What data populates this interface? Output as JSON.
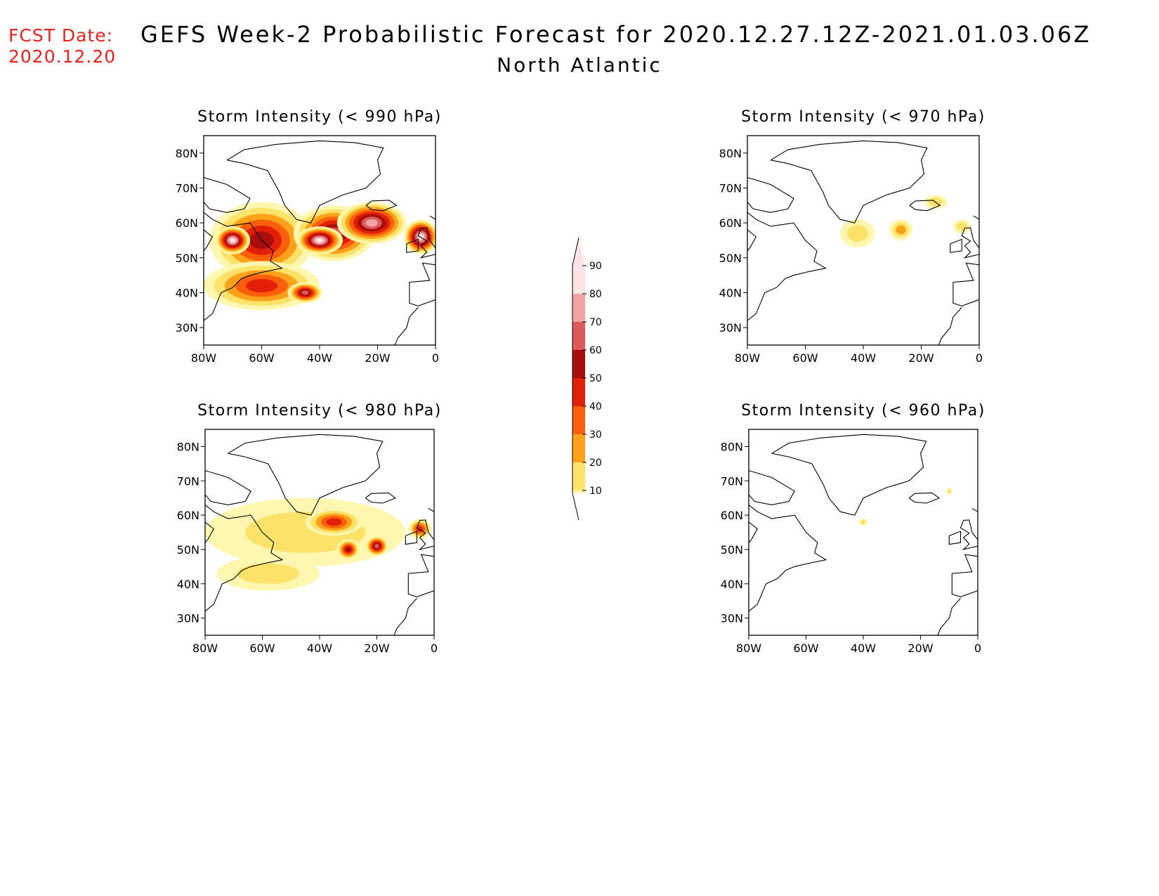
{
  "forecast_date": {
    "label": "FCST Date:",
    "value": "2020.12.20"
  },
  "title": "GEFS Week-2 Probabilistic Forecast for 2020.12.27.12Z-2021.01.03.06Z",
  "subtitle": "North Atlantic",
  "colors": {
    "levels": [
      "#fff7b0",
      "#fde26a",
      "#fda21a",
      "#fb5f0b",
      "#e21f07",
      "#a80e0c",
      "#dc5a5a",
      "#f2a4a4",
      "#fde4e4"
    ]
  },
  "chart_data": {
    "type": "heatmap",
    "colorbar": {
      "ticks": [
        "10",
        "20",
        "30",
        "40",
        "50",
        "60",
        "70",
        "80",
        "90"
      ],
      "range": [
        0,
        100
      ]
    },
    "axes": {
      "lon_range": [
        -80,
        0
      ],
      "lat_range": [
        25,
        85
      ],
      "x_ticks": [
        "80W",
        "60W",
        "40W",
        "20W",
        "0"
      ],
      "y_ticks": [
        "80N",
        "70N",
        "60N",
        "50N",
        "40N",
        "30N"
      ]
    },
    "panels": [
      {
        "title": "Storm Intensity (< 990 hPa)",
        "blobs": [
          {
            "lon": -60,
            "lat": 55,
            "rx": 18,
            "ry": 11,
            "level": 5
          },
          {
            "lon": -35,
            "lat": 57,
            "rx": 14,
            "ry": 8,
            "level": 6
          },
          {
            "lon": -22,
            "lat": 60,
            "rx": 12,
            "ry": 6,
            "level": 7
          },
          {
            "lon": -5,
            "lat": 56,
            "rx": 6,
            "ry": 5,
            "level": 8
          },
          {
            "lon": -40,
            "lat": 55,
            "rx": 8,
            "ry": 4,
            "level": 8
          },
          {
            "lon": -70,
            "lat": 55,
            "rx": 6,
            "ry": 4,
            "level": 8
          },
          {
            "lon": -60,
            "lat": 42,
            "rx": 20,
            "ry": 7,
            "level": 4
          },
          {
            "lon": -45,
            "lat": 40,
            "rx": 6,
            "ry": 3,
            "level": 6
          }
        ]
      },
      {
        "title": "Storm Intensity (< 970 hPa)",
        "blobs": [
          {
            "lon": -42,
            "lat": 57,
            "rx": 6,
            "ry": 4,
            "level": 1
          },
          {
            "lon": -27,
            "lat": 58,
            "rx": 4,
            "ry": 3,
            "level": 2
          },
          {
            "lon": -15,
            "lat": 66,
            "rx": 4,
            "ry": 2,
            "level": 1
          },
          {
            "lon": -6,
            "lat": 59,
            "rx": 3,
            "ry": 2,
            "level": 1
          }
        ]
      },
      {
        "title": "Storm Intensity (< 980 hPa)",
        "blobs": [
          {
            "lon": -45,
            "lat": 55,
            "rx": 35,
            "ry": 10,
            "level": 1
          },
          {
            "lon": -58,
            "lat": 43,
            "rx": 18,
            "ry": 5,
            "level": 1
          },
          {
            "lon": -35,
            "lat": 58,
            "rx": 10,
            "ry": 4,
            "level": 4
          },
          {
            "lon": -20,
            "lat": 51,
            "rx": 4,
            "ry": 3,
            "level": 6
          },
          {
            "lon": -5,
            "lat": 56,
            "rx": 4,
            "ry": 3,
            "level": 4
          },
          {
            "lon": -30,
            "lat": 50,
            "rx": 4,
            "ry": 3,
            "level": 5
          }
        ]
      },
      {
        "title": "Storm Intensity (< 960 hPa)",
        "blobs": [
          {
            "lon": -40,
            "lat": 58,
            "rx": 1.5,
            "ry": 1,
            "level": 1
          },
          {
            "lon": -10,
            "lat": 67,
            "rx": 1,
            "ry": 1,
            "level": 1
          }
        ]
      }
    ]
  }
}
